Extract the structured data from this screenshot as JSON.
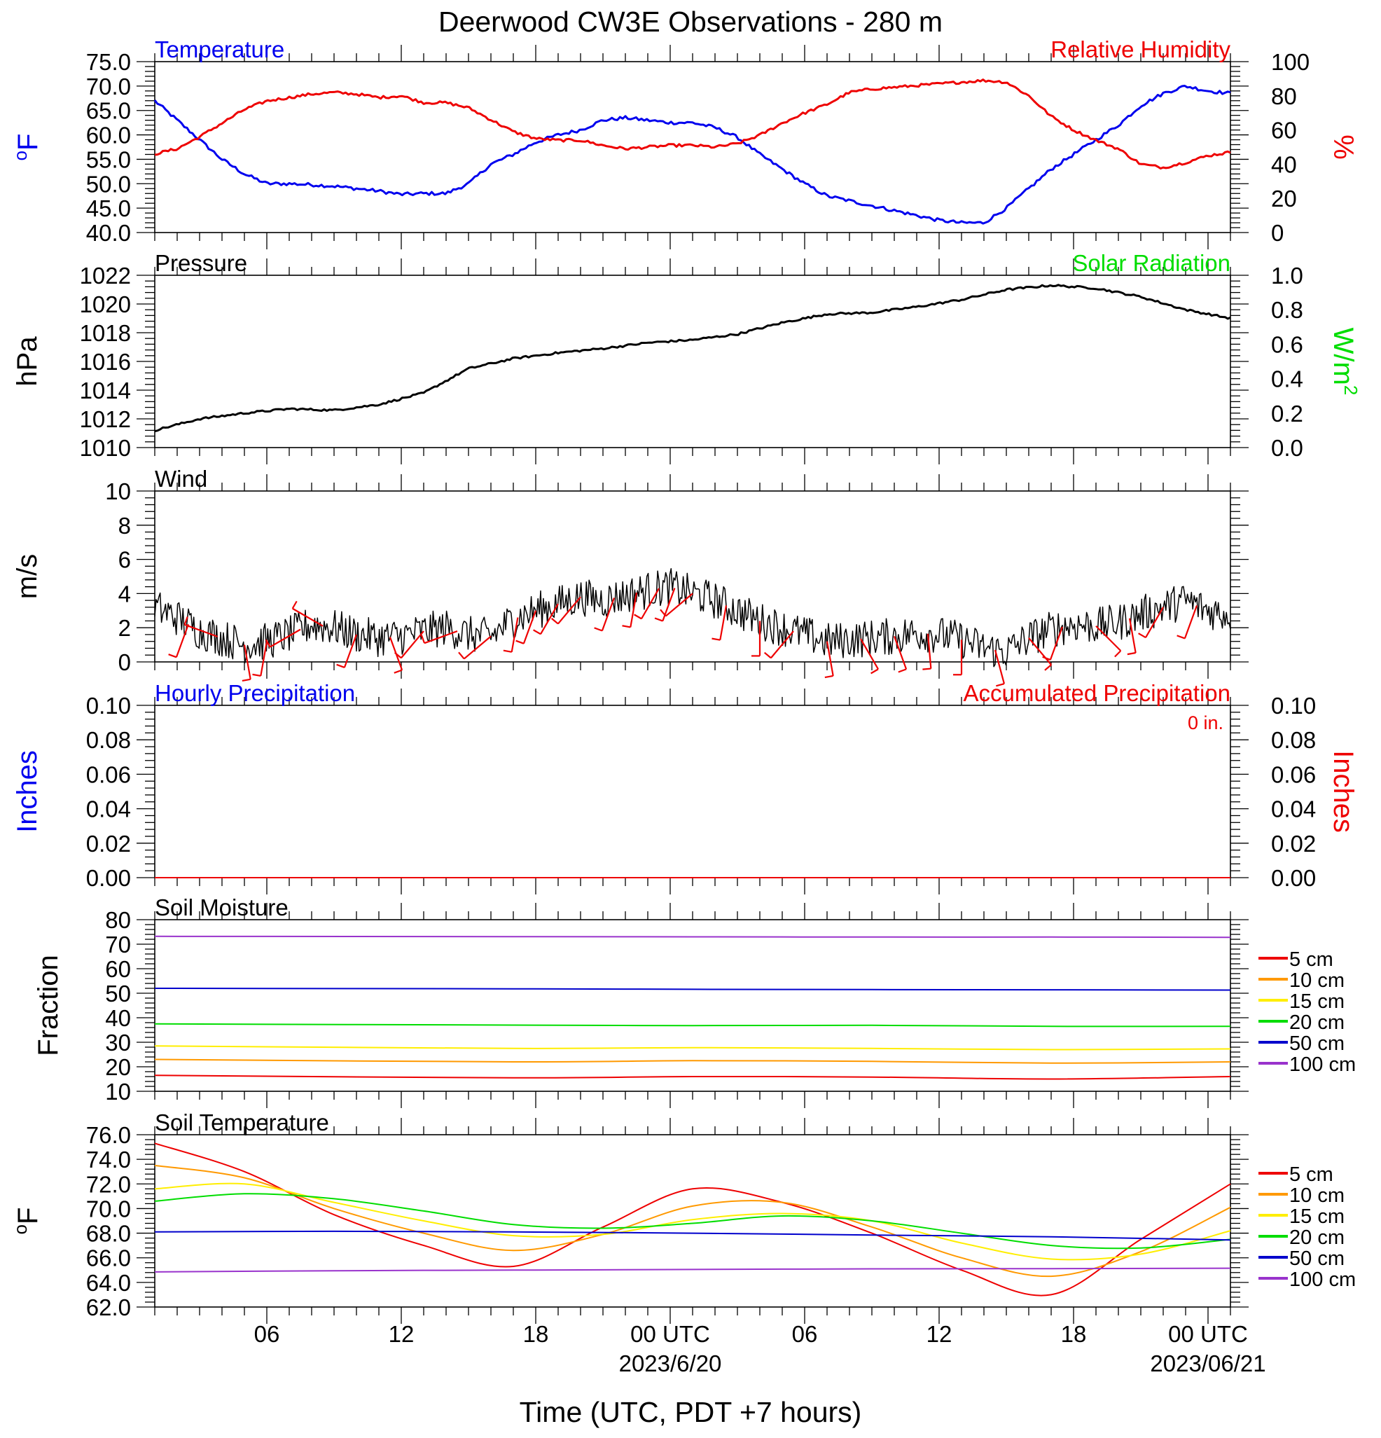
{
  "title": "Deerwood CW3E Observations - 280 m",
  "xlabel": "Time (UTC, PDT +7 hours)",
  "x_ticks": [
    {
      "label": "06",
      "sub": ""
    },
    {
      "label": "12",
      "sub": ""
    },
    {
      "label": "18",
      "sub": ""
    },
    {
      "label": "00 UTC",
      "sub": "2023/6/20"
    },
    {
      "label": "06",
      "sub": ""
    },
    {
      "label": "12",
      "sub": ""
    },
    {
      "label": "18",
      "sub": ""
    },
    {
      "label": "00 UTC",
      "sub": "2023/06/21"
    }
  ],
  "colors": {
    "temperature": "#0000ee",
    "humidity": "#ee0000",
    "solar": "#00dd00",
    "pressure": "#000000",
    "wind": "#000000",
    "barbs": "#ee0000"
  },
  "chart_data": [
    {
      "type": "line",
      "x_unit": "hours since 2023-06-19 01 UTC",
      "left_title": "Temperature",
      "right_title": "Relative Humidity",
      "ylabel_left": "oF",
      "ylabel_right": "%",
      "ylim_left": [
        40,
        75
      ],
      "ylim_right": [
        0,
        100
      ],
      "yticks_left": [
        "40.0",
        "45.0",
        "50.0",
        "55.0",
        "60.0",
        "65.0",
        "70.0",
        "75.0"
      ],
      "yticks_right": [
        "0",
        "20",
        "40",
        "60",
        "80",
        "100"
      ],
      "series": [
        {
          "name": "Temperature",
          "axis": "left",
          "color": "#0000ee",
          "x": [
            0,
            1,
            2,
            3,
            4,
            5,
            6,
            7,
            8,
            9,
            10,
            11,
            12,
            13,
            14,
            15,
            16,
            17,
            18,
            19,
            20,
            21,
            22,
            23,
            24,
            25,
            26,
            27,
            28,
            29,
            30,
            31,
            32,
            33,
            34,
            35,
            36,
            37,
            38,
            39,
            40,
            41,
            42,
            43,
            44,
            45,
            46,
            47,
            48
          ],
          "y": [
            67,
            63,
            59,
            55,
            52,
            50,
            50,
            49.8,
            49.5,
            49,
            48.5,
            47.8,
            48,
            48,
            50,
            54,
            56,
            58.5,
            60,
            61,
            63,
            63.5,
            63,
            62.5,
            62.5,
            61.5,
            59.5,
            56,
            53,
            50,
            47.5,
            46.5,
            45.5,
            44.5,
            43.5,
            42.5,
            42,
            42,
            45,
            49,
            53,
            56,
            59,
            62,
            66,
            68.5,
            70,
            69,
            68.5
          ]
        },
        {
          "name": "Relative Humidity",
          "axis": "right",
          "color": "#ee0000",
          "x": [
            0,
            1,
            2,
            3,
            4,
            5,
            6,
            7,
            8,
            9,
            10,
            11,
            12,
            13,
            14,
            15,
            16,
            17,
            18,
            19,
            20,
            21,
            22,
            23,
            24,
            25,
            26,
            27,
            28,
            29,
            30,
            31,
            32,
            33,
            34,
            35,
            36,
            37,
            38,
            39,
            40,
            41,
            42,
            43,
            44,
            45,
            46,
            47,
            48
          ],
          "y": [
            46,
            49,
            56,
            64,
            72,
            77,
            79,
            81,
            82,
            81,
            79,
            80,
            76,
            76,
            73,
            66,
            59,
            55,
            54,
            54,
            51,
            49,
            50,
            51,
            51,
            50,
            52,
            57,
            64,
            70,
            75,
            82,
            84,
            85,
            86,
            87,
            88,
            89,
            88,
            80,
            68,
            60,
            54,
            49,
            40,
            38,
            41,
            45,
            47
          ]
        }
      ]
    },
    {
      "type": "line",
      "x_unit": "hours since 2023-06-19 01 UTC",
      "left_title": "Pressure",
      "right_title": "Solar Radiation",
      "ylabel_left": "hPa",
      "ylabel_right": "W/m",
      "ylabel_right_sup": "2",
      "ylim_left": [
        1010,
        1022
      ],
      "ylim_right": [
        0,
        1
      ],
      "yticks_left": [
        "1010",
        "1012",
        "1014",
        "1016",
        "1018",
        "1020",
        "1022"
      ],
      "yticks_right": [
        "0.0",
        "0.2",
        "0.4",
        "0.6",
        "0.8",
        "1.0"
      ],
      "series": [
        {
          "name": "Pressure",
          "axis": "left",
          "color": "#000000",
          "x": [
            0,
            2,
            4,
            6,
            8,
            10,
            12,
            14,
            16,
            18,
            20,
            22,
            24,
            26,
            28,
            30,
            32,
            34,
            36,
            38,
            40,
            42,
            44,
            46,
            48
          ],
          "y": [
            1011.2,
            1012,
            1012.4,
            1012.7,
            1012.6,
            1013,
            1013.8,
            1015.5,
            1016.2,
            1016.6,
            1016.9,
            1017.3,
            1017.5,
            1017.9,
            1018.7,
            1019.3,
            1019.4,
            1019.8,
            1020.3,
            1021,
            1021.3,
            1021.1,
            1020.5,
            1019.6,
            1019
          ]
        }
      ]
    },
    {
      "type": "line",
      "x_unit": "hours since 2023-06-19 01 UTC",
      "left_title": "Wind",
      "ylabel_left": "m/s",
      "ylim_left": [
        0,
        10
      ],
      "yticks_left": [
        "0",
        "2",
        "4",
        "6",
        "8",
        "10"
      ],
      "series": [
        {
          "name": "Wind",
          "axis": "left",
          "color": "#000000",
          "x": [
            0,
            1,
            2,
            3,
            4,
            5,
            6,
            7,
            8,
            9,
            10,
            11,
            12,
            13,
            14,
            15,
            16,
            17,
            18,
            19,
            20,
            21,
            22,
            23,
            24,
            25,
            26,
            27,
            28,
            29,
            30,
            31,
            32,
            33,
            34,
            35,
            36,
            37,
            38,
            39,
            40,
            41,
            42,
            43,
            44,
            45,
            46,
            47,
            48
          ],
          "y": [
            3.2,
            2.6,
            1.8,
            1.4,
            1.0,
            1.2,
            1.6,
            2.2,
            2.0,
            1.6,
            1.4,
            1.5,
            1.8,
            2.0,
            1.6,
            1.5,
            2.5,
            3.0,
            3.4,
            3.8,
            3.6,
            3.9,
            4.2,
            4.4,
            4.0,
            3.6,
            3.0,
            2.4,
            2.0,
            1.6,
            1.2,
            1.3,
            1.4,
            1.5,
            1.7,
            1.6,
            1.3,
            0.8,
            0.6,
            1.4,
            1.9,
            2.2,
            2.1,
            2.3,
            2.8,
            3.2,
            3.6,
            3.0,
            2.8
          ]
        }
      ],
      "barbs": [
        {
          "t": 1.5,
          "dir": 200
        },
        {
          "t": 2.8,
          "dir": 290
        },
        {
          "t": 4.0,
          "dir": 170
        },
        {
          "t": 5.0,
          "dir": 190
        },
        {
          "t": 6.5,
          "dir": 240
        },
        {
          "t": 7.5,
          "dir": 300
        },
        {
          "t": 9.0,
          "dir": 200
        },
        {
          "t": 10.5,
          "dir": 160
        },
        {
          "t": 12.0,
          "dir": 220
        },
        {
          "t": 13.5,
          "dir": 250
        },
        {
          "t": 15.0,
          "dir": 230
        },
        {
          "t": 16.2,
          "dir": 190
        },
        {
          "t": 17.0,
          "dir": 200
        },
        {
          "t": 18.0,
          "dir": 210
        },
        {
          "t": 19.0,
          "dir": 220
        },
        {
          "t": 20.5,
          "dir": 200
        },
        {
          "t": 21.5,
          "dir": 190
        },
        {
          "t": 22.5,
          "dir": 210
        },
        {
          "t": 23.2,
          "dir": 200
        },
        {
          "t": 24.0,
          "dir": 230
        },
        {
          "t": 25.5,
          "dir": 190
        },
        {
          "t": 27.0,
          "dir": 180
        },
        {
          "t": 28.5,
          "dir": 220
        },
        {
          "t": 30.0,
          "dir": 170
        },
        {
          "t": 31.5,
          "dir": 150
        },
        {
          "t": 33.0,
          "dir": 160
        },
        {
          "t": 34.5,
          "dir": 175
        },
        {
          "t": 36.0,
          "dir": 180
        },
        {
          "t": 37.5,
          "dir": 165
        },
        {
          "t": 39.0,
          "dir": 140
        },
        {
          "t": 40.5,
          "dir": 200
        },
        {
          "t": 42.0,
          "dir": 135
        },
        {
          "t": 43.5,
          "dir": 170
        },
        {
          "t": 45.0,
          "dir": 210
        },
        {
          "t": 46.5,
          "dir": 200
        }
      ]
    },
    {
      "type": "line",
      "x_unit": "hours since 2023-06-19 01 UTC",
      "left_title": "Hourly Precipitation",
      "right_title": "Accumulated Precipitation",
      "annotation": "0 in.",
      "ylabel_left": "Inches",
      "ylabel_right": "Inches",
      "ylim_left": [
        0,
        0.1
      ],
      "ylim_right": [
        0,
        0.1
      ],
      "yticks_left": [
        "0.00",
        "0.02",
        "0.04",
        "0.06",
        "0.08",
        "0.10"
      ],
      "yticks_right": [
        "0.00",
        "0.02",
        "0.04",
        "0.06",
        "0.08",
        "0.10"
      ],
      "series": [
        {
          "name": "Hourly Precipitation",
          "axis": "left",
          "color": "#0000ee",
          "x": [
            0,
            48
          ],
          "y": [
            0,
            0
          ]
        },
        {
          "name": "Accumulated Precipitation",
          "axis": "right",
          "color": "#ee0000",
          "x": [
            0,
            48
          ],
          "y": [
            0,
            0
          ]
        }
      ]
    },
    {
      "type": "line",
      "x_unit": "hours since 2023-06-19 01 UTC",
      "left_title": "Soil Moisture",
      "ylabel_left": "Fraction",
      "ylim_left": [
        10,
        80
      ],
      "yticks_left": [
        "10",
        "20",
        "30",
        "40",
        "50",
        "60",
        "70",
        "80"
      ],
      "legend_position": "right",
      "series": [
        {
          "name": "5 cm",
          "color": "#ee0000",
          "x": [
            0,
            16,
            24,
            32,
            40,
            48
          ],
          "y": [
            16.5,
            15.5,
            16,
            15.8,
            15,
            16
          ]
        },
        {
          "name": "10 cm",
          "color": "#ff9900",
          "x": [
            0,
            16,
            24,
            32,
            40,
            48
          ],
          "y": [
            23,
            22,
            22.5,
            22.2,
            21.5,
            22
          ]
        },
        {
          "name": "15 cm",
          "color": "#ffee00",
          "x": [
            0,
            16,
            24,
            32,
            40,
            48
          ],
          "y": [
            28.5,
            27.5,
            27.8,
            27.5,
            27,
            27.3
          ]
        },
        {
          "name": "20 cm",
          "color": "#00dd00",
          "x": [
            0,
            16,
            24,
            32,
            40,
            48
          ],
          "y": [
            37.5,
            37,
            36.8,
            36.9,
            36.5,
            36.5
          ]
        },
        {
          "name": "50 cm",
          "color": "#0000cc",
          "x": [
            0,
            16,
            24,
            32,
            40,
            48
          ],
          "y": [
            52,
            51.8,
            51.6,
            51.5,
            51.4,
            51.3
          ]
        },
        {
          "name": "100 cm",
          "color": "#9933cc",
          "x": [
            0,
            16,
            24,
            32,
            40,
            48
          ],
          "y": [
            73.2,
            73.1,
            73,
            72.9,
            72.9,
            72.8
          ]
        }
      ]
    },
    {
      "type": "line",
      "x_unit": "hours since 2023-06-19 01 UTC",
      "left_title": "Soil Temperature",
      "ylabel_left": "oF",
      "ylim_left": [
        62,
        76
      ],
      "yticks_left": [
        "62.0",
        "64.0",
        "66.0",
        "68.0",
        "70.0",
        "72.0",
        "74.0",
        "76.0"
      ],
      "legend_position": "right",
      "series": [
        {
          "name": "5 cm",
          "color": "#ee0000",
          "x": [
            0,
            4,
            8,
            12,
            16,
            20,
            24,
            28,
            32,
            36,
            40,
            44,
            48
          ],
          "y": [
            75.3,
            73,
            69.5,
            67,
            65.3,
            68.5,
            71.6,
            70.5,
            68,
            65,
            63,
            67.5,
            72
          ]
        },
        {
          "name": "10 cm",
          "color": "#ff9900",
          "x": [
            0,
            4,
            8,
            12,
            16,
            20,
            24,
            28,
            32,
            36,
            40,
            44,
            48
          ],
          "y": [
            73.5,
            72.5,
            70,
            68,
            66.6,
            67.9,
            70.2,
            70.5,
            68.5,
            66,
            64.5,
            66.5,
            70.1
          ]
        },
        {
          "name": "15 cm",
          "color": "#ffee00",
          "x": [
            0,
            4,
            8,
            12,
            16,
            20,
            24,
            28,
            32,
            36,
            40,
            44,
            48
          ],
          "y": [
            71.6,
            72,
            70.5,
            69,
            67.8,
            67.9,
            69.1,
            69.6,
            69,
            67.2,
            65.9,
            66.3,
            68.2
          ]
        },
        {
          "name": "20 cm",
          "color": "#00dd00",
          "x": [
            0,
            4,
            8,
            12,
            16,
            20,
            24,
            28,
            32,
            36,
            40,
            44,
            48
          ],
          "y": [
            70.6,
            71.2,
            70.8,
            69.8,
            68.7,
            68.4,
            68.8,
            69.4,
            69,
            68,
            67,
            66.8,
            67.5
          ]
        },
        {
          "name": "50 cm",
          "color": "#0000cc",
          "x": [
            0,
            8,
            16,
            24,
            32,
            40,
            48
          ],
          "y": [
            68.1,
            68.15,
            68.1,
            68,
            67.85,
            67.7,
            67.45
          ]
        },
        {
          "name": "100 cm",
          "color": "#9933cc",
          "x": [
            0,
            8,
            16,
            24,
            32,
            40,
            48
          ],
          "y": [
            64.85,
            64.95,
            65.0,
            65.05,
            65.1,
            65.12,
            65.15
          ]
        }
      ]
    }
  ]
}
